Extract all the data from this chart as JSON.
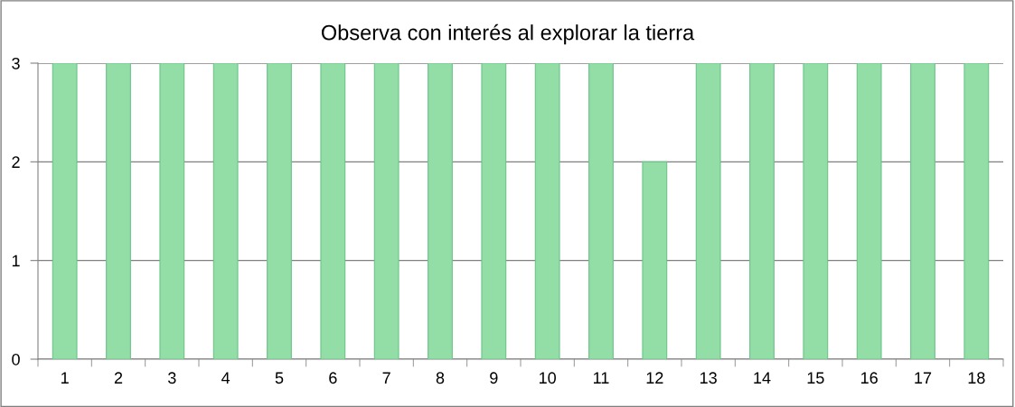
{
  "chart_data": {
    "type": "bar",
    "title": "Observa con interés al explorar la tierra",
    "categories": [
      "1",
      "2",
      "3",
      "4",
      "5",
      "6",
      "7",
      "8",
      "9",
      "10",
      "11",
      "12",
      "13",
      "14",
      "15",
      "16",
      "17",
      "18"
    ],
    "values": [
      3,
      3,
      3,
      3,
      3,
      3,
      3,
      3,
      3,
      3,
      3,
      2,
      3,
      3,
      3,
      3,
      3,
      3
    ],
    "color": "#92dea6",
    "ylim": [
      0,
      3
    ],
    "yticks": [
      0,
      1,
      2,
      3
    ],
    "grid": "y",
    "legend": false
  }
}
